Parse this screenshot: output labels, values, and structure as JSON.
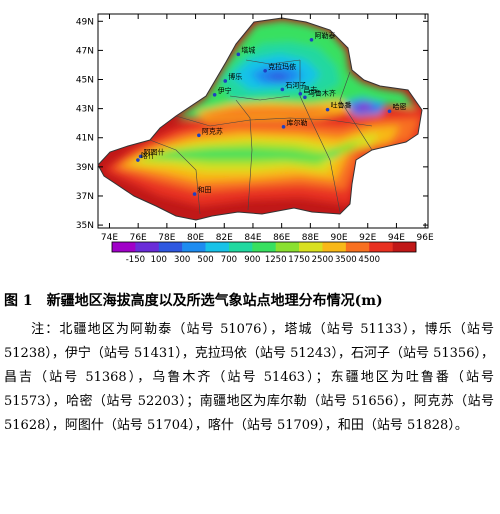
{
  "figure": {
    "y_axis_labels": [
      "49N",
      "47N",
      "45N",
      "43N",
      "41N",
      "39N",
      "37N",
      "35N"
    ],
    "x_axis_labels": [
      "74E",
      "76E",
      "78E",
      "80E",
      "82E",
      "84E",
      "86E",
      "88E",
      "90E",
      "92E",
      "94E",
      "96E"
    ],
    "legend_labels": [
      "-150",
      "100",
      "300",
      "500",
      "700",
      "900",
      "1250",
      "1750",
      "2500",
      "3500",
      "4500"
    ],
    "legend_colors": [
      "#a000c8",
      "#6a2cd8",
      "#2f58e0",
      "#1e8cf0",
      "#18c2e8",
      "#20d8a0",
      "#38e060",
      "#8ae030",
      "#d8e020",
      "#f8b818",
      "#f87020",
      "#e83020",
      "#c01818"
    ],
    "stations": [
      {
        "name": "阿勒泰",
        "lon": 88.08,
        "lat": 47.73
      },
      {
        "name": "塔城",
        "lon": 82.98,
        "lat": 46.73
      },
      {
        "name": "克拉玛依",
        "lon": 84.85,
        "lat": 45.6
      },
      {
        "name": "博乐",
        "lon": 82.07,
        "lat": 44.9
      },
      {
        "name": "伊宁",
        "lon": 81.33,
        "lat": 43.95
      },
      {
        "name": "石河子",
        "lon": 86.05,
        "lat": 44.32
      },
      {
        "name": "昌吉",
        "lon": 87.3,
        "lat": 44.02
      },
      {
        "name": "乌鲁木齐",
        "lon": 87.62,
        "lat": 43.78
      },
      {
        "name": "吐鲁番",
        "lon": 89.2,
        "lat": 42.93
      },
      {
        "name": "哈密",
        "lon": 93.52,
        "lat": 42.82
      },
      {
        "name": "库尔勒",
        "lon": 86.13,
        "lat": 41.75
      },
      {
        "name": "阿克苏",
        "lon": 80.23,
        "lat": 41.17
      },
      {
        "name": "阿图什",
        "lon": 76.17,
        "lat": 39.72
      },
      {
        "name": "喀什",
        "lon": 75.98,
        "lat": 39.47
      },
      {
        "name": "和田",
        "lon": 79.93,
        "lat": 37.13
      }
    ]
  },
  "caption": {
    "number": "图 1",
    "title": "新疆地区海拔高度以及所选气象站点地理分布情况(m)"
  },
  "note": "注：北疆地区为阿勒泰（站号 51076），塔城（站号 51133），博乐（站号 51238），伊宁（站号 51431），克拉玛依（站号 51243），石河子（站号 51356），昌吉（站号 51368），乌鲁木齐（站号 51463）；东疆地区为吐鲁番（站号 51573），哈密（站号 52203）；南疆地区为库尔勒（站号 51656），阿克苏（站号 51628），阿图什（站号 51704），喀什（站号 51709），和田（站号 51828）。"
}
